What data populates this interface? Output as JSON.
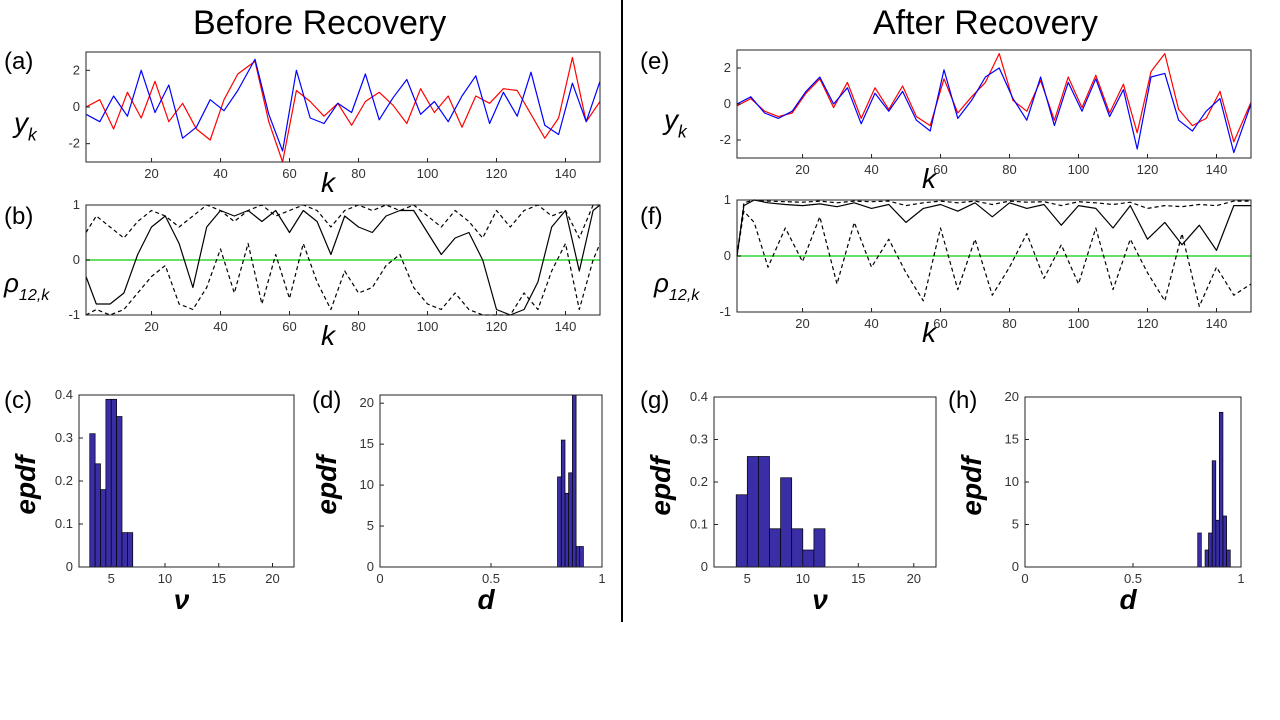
{
  "headings": {
    "left": "Before Recovery",
    "right": "After Recovery"
  },
  "panel_labels": {
    "a": "(a)",
    "b": "(b)",
    "c": "(c)",
    "d": "(d)",
    "e": "(e)",
    "f": "(f)",
    "g": "(g)",
    "h": "(h)"
  },
  "chart_data": [
    {
      "id": "a",
      "type": "line",
      "title": "",
      "xlabel": "k",
      "ylabel": "y_k",
      "xlim": [
        1,
        150
      ],
      "ylim": [
        -3,
        3
      ],
      "xticks": [
        20,
        40,
        60,
        80,
        100,
        120,
        140
      ],
      "yticks": [
        -2,
        0,
        2
      ],
      "colors": {
        "series_1": "#ff0000",
        "series_2": "#0000ff"
      },
      "series": [
        {
          "color": "#ff0000",
          "x": [
            1,
            5,
            9,
            13,
            17,
            21,
            25,
            29,
            33,
            37,
            41,
            45,
            50,
            54,
            58,
            62,
            66,
            70,
            74,
            78,
            82,
            86,
            90,
            94,
            98,
            102,
            106,
            110,
            114,
            118,
            122,
            126,
            130,
            134,
            138,
            142,
            146,
            150
          ],
          "y": [
            0,
            0.4,
            -1.2,
            0.8,
            -0.6,
            1.4,
            -0.8,
            0.2,
            -1.2,
            -1.8,
            0.4,
            1.8,
            2.5,
            -0.8,
            -3,
            0.9,
            0.3,
            -0.5,
            0.2,
            -1,
            0.3,
            0.8,
            0.1,
            -0.9,
            1,
            -0.3,
            0.6,
            -1.1,
            0.6,
            0.2,
            1,
            0.9,
            -0.4,
            -1.7,
            -0.6,
            2.7,
            -0.8,
            0.3
          ]
        },
        {
          "color": "#0000ff",
          "x": [
            1,
            5,
            9,
            13,
            17,
            21,
            25,
            29,
            33,
            37,
            41,
            45,
            50,
            54,
            58,
            62,
            66,
            70,
            74,
            78,
            82,
            86,
            90,
            94,
            98,
            102,
            106,
            110,
            114,
            118,
            122,
            126,
            130,
            134,
            138,
            142,
            146,
            150
          ],
          "y": [
            -0.4,
            -0.8,
            0.6,
            -0.5,
            2,
            -0.3,
            1.2,
            -1.7,
            -1.1,
            0.4,
            -0.2,
            0.9,
            2.6,
            -0.4,
            -2.4,
            2,
            -0.6,
            -0.9,
            0.2,
            -0.3,
            1.8,
            -0.7,
            0.5,
            1.5,
            -0.4,
            0.3,
            -0.8,
            0.6,
            1.7,
            -0.9,
            0.8,
            -0.5,
            1.9,
            -1,
            -1.5,
            1.3,
            -0.8,
            1.4
          ]
        }
      ]
    },
    {
      "id": "b",
      "type": "line",
      "title": "",
      "xlabel": "k",
      "ylabel": "ρ_12,k",
      "xlim": [
        1,
        150
      ],
      "ylim": [
        -1,
        1
      ],
      "xticks": [
        20,
        40,
        60,
        80,
        100,
        120,
        140
      ],
      "yticks": [
        -1,
        0,
        1
      ],
      "reference_line": {
        "y": 0,
        "color": "#66e066"
      },
      "series": [
        {
          "style": "solid",
          "x": [
            1,
            4,
            8,
            12,
            16,
            20,
            24,
            28,
            32,
            36,
            40,
            44,
            48,
            52,
            56,
            60,
            64,
            68,
            72,
            76,
            80,
            84,
            88,
            92,
            96,
            100,
            104,
            108,
            112,
            116,
            120,
            124,
            128,
            132,
            136,
            140,
            144,
            148,
            150
          ],
          "y": [
            -0.3,
            -0.8,
            -0.8,
            -0.6,
            0.1,
            0.6,
            0.8,
            0.3,
            -0.5,
            0.6,
            0.9,
            0.8,
            0.9,
            0.7,
            0.9,
            0.5,
            0.9,
            0.7,
            0.1,
            0.8,
            0.6,
            0.5,
            0.8,
            0.9,
            0.9,
            0.5,
            0.1,
            0.4,
            0.5,
            0,
            -0.9,
            -1,
            -0.9,
            -0.4,
            0.6,
            0.9,
            -0.2,
            0.9,
            1
          ]
        },
        {
          "style": "dashed",
          "x": [
            1,
            4,
            8,
            12,
            16,
            20,
            24,
            28,
            32,
            36,
            40,
            44,
            48,
            52,
            56,
            60,
            64,
            68,
            72,
            76,
            80,
            84,
            88,
            92,
            96,
            100,
            104,
            108,
            112,
            116,
            120,
            124,
            128,
            132,
            136,
            140,
            144,
            148,
            150
          ],
          "y": [
            0.5,
            0.8,
            0.6,
            0.4,
            0.7,
            0.9,
            0.8,
            0.6,
            0.8,
            1,
            0.9,
            0.7,
            0.9,
            1,
            0.8,
            0.9,
            1,
            0.9,
            0.6,
            0.9,
            1,
            0.9,
            1,
            0.9,
            1,
            0.8,
            0.6,
            0.9,
            0.7,
            0.4,
            0.9,
            0.6,
            0.9,
            1,
            0.8,
            0.9,
            0.4,
            1,
            1
          ]
        },
        {
          "style": "dashed",
          "x": [
            1,
            4,
            8,
            12,
            16,
            20,
            24,
            28,
            32,
            36,
            40,
            44,
            48,
            52,
            56,
            60,
            64,
            68,
            72,
            76,
            80,
            84,
            88,
            92,
            96,
            100,
            104,
            108,
            112,
            116,
            120,
            124,
            128,
            132,
            136,
            140,
            144,
            148,
            150
          ],
          "y": [
            -1,
            -0.9,
            -1,
            -0.9,
            -0.6,
            -0.3,
            -0.1,
            -0.8,
            -0.9,
            -0.5,
            0.2,
            -0.6,
            0.3,
            -0.8,
            0.1,
            -0.7,
            0.3,
            -0.4,
            -0.9,
            -0.2,
            -0.6,
            -0.5,
            -0.1,
            0.1,
            -0.5,
            -0.8,
            -0.9,
            -0.6,
            -0.9,
            -1,
            -1,
            -1,
            -0.6,
            -0.9,
            -0.2,
            0.3,
            -0.9,
            0,
            0.3
          ]
        }
      ]
    },
    {
      "id": "c",
      "type": "bar",
      "title": "",
      "xlabel": "ν",
      "ylabel": "epdf",
      "xlim": [
        2,
        22
      ],
      "ylim": [
        0,
        0.4
      ],
      "xticks": [
        5,
        10,
        15,
        20
      ],
      "yticks": [
        0,
        0.1,
        0.2,
        0.3,
        0.4
      ],
      "bar_color": "#3a2ea6",
      "bin_width": 0.5,
      "x": [
        3.25,
        3.75,
        4.25,
        4.75,
        5.25,
        5.75,
        6.25,
        6.75
      ],
      "values": [
        0.31,
        0.24,
        0.18,
        0.39,
        0.39,
        0.35,
        0.08,
        0.08
      ]
    },
    {
      "id": "d",
      "type": "bar",
      "title": "",
      "xlabel": "d",
      "ylabel": "epdf",
      "xlim": [
        0,
        1
      ],
      "ylim": [
        0,
        21
      ],
      "xticks": [
        0,
        0.5,
        1
      ],
      "yticks": [
        0,
        5,
        10,
        15,
        20
      ],
      "bar_color": "#3a2ea6",
      "bin_width": 0.0167,
      "x": [
        0.808,
        0.825,
        0.842,
        0.858,
        0.875,
        0.892,
        0.908
      ],
      "values": [
        11,
        15.5,
        9,
        11.5,
        21,
        2.5,
        2.5
      ]
    },
    {
      "id": "e",
      "type": "line",
      "title": "",
      "xlabel": "k",
      "ylabel": "y_k",
      "xlim": [
        1,
        150
      ],
      "ylim": [
        -3,
        3
      ],
      "xticks": [
        20,
        40,
        60,
        80,
        100,
        120,
        140
      ],
      "yticks": [
        -2,
        0,
        2
      ],
      "series": [
        {
          "color": "#ff0000",
          "x": [
            1,
            5,
            9,
            13,
            17,
            21,
            25,
            29,
            33,
            37,
            41,
            45,
            49,
            53,
            57,
            61,
            65,
            69,
            73,
            77,
            81,
            85,
            89,
            93,
            97,
            101,
            105,
            109,
            113,
            117,
            121,
            125,
            129,
            133,
            137,
            141,
            145,
            150
          ],
          "y": [
            -0.1,
            0.3,
            -0.4,
            -0.7,
            -0.5,
            0.6,
            1.4,
            -0.2,
            1.2,
            -0.8,
            0.9,
            -0.3,
            1,
            -0.7,
            -1.2,
            1.4,
            -0.5,
            0.4,
            1.2,
            2.8,
            0.2,
            -0.4,
            1.3,
            -0.9,
            1.5,
            -0.2,
            1.6,
            -0.5,
            1.1,
            -1.6,
            1.8,
            2.8,
            -0.3,
            -1.2,
            -0.8,
            0.7,
            -2.1,
            0.1
          ]
        },
        {
          "color": "#0000ff",
          "x": [
            1,
            5,
            9,
            13,
            17,
            21,
            25,
            29,
            33,
            37,
            41,
            45,
            49,
            53,
            57,
            61,
            65,
            69,
            73,
            77,
            81,
            85,
            89,
            93,
            97,
            101,
            105,
            109,
            113,
            117,
            121,
            125,
            129,
            133,
            137,
            141,
            145,
            150
          ],
          "y": [
            0,
            0.4,
            -0.5,
            -0.8,
            -0.4,
            0.7,
            1.5,
            0,
            0.9,
            -1.1,
            0.6,
            -0.4,
            0.7,
            -0.9,
            -1.5,
            1.9,
            -0.8,
            0.2,
            1.5,
            2,
            0.3,
            -0.9,
            1.5,
            -1.2,
            1.2,
            -0.4,
            1.4,
            -0.7,
            0.8,
            -2.5,
            1.5,
            1.7,
            -0.9,
            -1.5,
            -0.4,
            0.3,
            -2.7,
            0
          ]
        }
      ]
    },
    {
      "id": "f",
      "type": "line",
      "title": "",
      "xlabel": "k",
      "ylabel": "ρ_12,k",
      "xlim": [
        1,
        150
      ],
      "ylim": [
        -1,
        1
      ],
      "xticks": [
        20,
        40,
        60,
        80,
        100,
        120,
        140
      ],
      "yticks": [
        -1,
        0,
        1
      ],
      "reference_line": {
        "y": 0,
        "color": "#66e066"
      },
      "series": [
        {
          "style": "solid",
          "x": [
            1,
            3,
            6,
            10,
            15,
            20,
            25,
            30,
            35,
            40,
            45,
            50,
            55,
            60,
            65,
            70,
            75,
            80,
            85,
            90,
            95,
            100,
            105,
            110,
            115,
            120,
            125,
            130,
            135,
            140,
            145,
            150
          ],
          "y": [
            0,
            0.9,
            1,
            0.95,
            0.92,
            0.9,
            0.93,
            0.88,
            0.95,
            0.85,
            0.92,
            0.6,
            0.85,
            0.92,
            0.8,
            0.95,
            0.7,
            0.95,
            0.85,
            0.92,
            0.55,
            0.9,
            0.85,
            0.5,
            0.9,
            0.3,
            0.6,
            0.2,
            0.55,
            0.1,
            0.9,
            0.9
          ]
        },
        {
          "style": "dashed",
          "x": [
            1,
            3,
            6,
            10,
            15,
            20,
            25,
            30,
            35,
            40,
            45,
            50,
            55,
            60,
            65,
            70,
            75,
            80,
            85,
            90,
            95,
            100,
            105,
            110,
            115,
            120,
            125,
            130,
            135,
            140,
            145,
            150
          ],
          "y": [
            0,
            0.95,
            1,
            0.98,
            0.97,
            0.96,
            0.98,
            0.95,
            0.98,
            0.97,
            0.98,
            0.9,
            0.95,
            0.98,
            0.95,
            0.98,
            0.92,
            0.98,
            0.96,
            0.97,
            0.9,
            0.97,
            0.95,
            0.92,
            0.96,
            0.85,
            0.9,
            0.88,
            0.92,
            0.9,
            0.98,
            0.98
          ]
        },
        {
          "style": "dashed",
          "x": [
            1,
            3,
            6,
            10,
            15,
            20,
            25,
            30,
            35,
            40,
            45,
            50,
            55,
            60,
            65,
            70,
            75,
            80,
            85,
            90,
            95,
            100,
            105,
            110,
            115,
            120,
            125,
            130,
            135,
            140,
            145,
            150
          ],
          "y": [
            0,
            0.8,
            0.6,
            -0.2,
            0.5,
            -0.1,
            0.7,
            -0.5,
            0.6,
            -0.2,
            0.3,
            -0.3,
            -0.8,
            0.5,
            -0.6,
            0.3,
            -0.7,
            -0.2,
            0.4,
            -0.4,
            0.2,
            -0.5,
            0.5,
            -0.6,
            0.3,
            -0.3,
            -0.8,
            0.4,
            -0.9,
            -0.2,
            -0.7,
            -0.5
          ]
        }
      ]
    },
    {
      "id": "g",
      "type": "bar",
      "title": "",
      "xlabel": "ν",
      "ylabel": "epdf",
      "xlim": [
        2,
        22
      ],
      "ylim": [
        0,
        0.4
      ],
      "xticks": [
        5,
        10,
        15,
        20
      ],
      "yticks": [
        0,
        0.1,
        0.2,
        0.3,
        0.4
      ],
      "bar_color": "#3a2ea6",
      "bin_width": 1,
      "x": [
        4.5,
        5.5,
        6.5,
        7.5,
        8.5,
        9.5,
        10.5,
        11.5
      ],
      "values": [
        0.17,
        0.26,
        0.26,
        0.09,
        0.21,
        0.09,
        0.04,
        0.09
      ]
    },
    {
      "id": "h",
      "type": "bar",
      "title": "",
      "xlabel": "d",
      "ylabel": "epdf",
      "xlim": [
        0,
        1
      ],
      "ylim": [
        0,
        20
      ],
      "xticks": [
        0,
        0.5,
        1
      ],
      "yticks": [
        0,
        5,
        10,
        15,
        20
      ],
      "bar_color": "#3a2ea6",
      "bin_width": 0.0167,
      "x": [
        0.808,
        0.842,
        0.858,
        0.875,
        0.892,
        0.908,
        0.925,
        0.942
      ],
      "values": [
        4,
        2,
        4,
        12.5,
        5.5,
        18.2,
        6,
        2
      ]
    }
  ]
}
